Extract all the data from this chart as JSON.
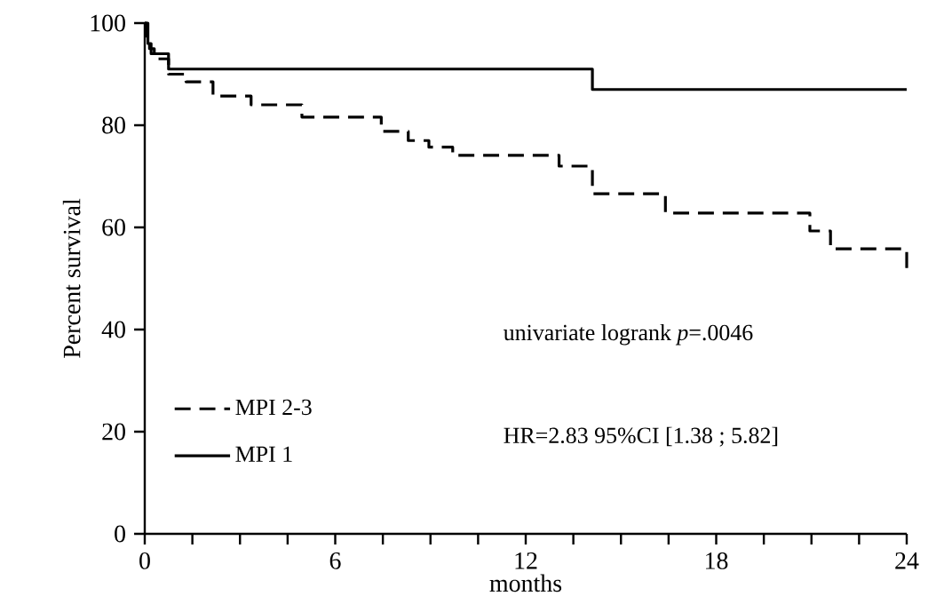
{
  "chart_data": {
    "type": "step",
    "xlabel": "months",
    "ylabel": "Percent survival",
    "xlim": [
      0,
      24
    ],
    "ylim": [
      0,
      100
    ],
    "xticks": [
      0,
      {
        "value": 1.5,
        "label": null
      },
      {
        "value": 3,
        "label": null
      },
      {
        "value": 4.5,
        "label": null
      },
      6,
      {
        "value": 7.5,
        "label": null
      },
      {
        "value": 9,
        "label": null
      },
      {
        "value": 10.5,
        "label": null
      },
      12,
      {
        "value": 13.5,
        "label": null
      },
      {
        "value": 15,
        "label": null
      },
      {
        "value": 16.5,
        "label": null
      },
      18,
      {
        "value": 19.5,
        "label": null
      },
      {
        "value": 21,
        "label": null
      },
      {
        "value": 22.5,
        "label": null
      },
      24
    ],
    "yticks": [
      0,
      20,
      40,
      60,
      80,
      100
    ],
    "grid": false,
    "legend": "bottom left",
    "series": [
      {
        "name": "MPI 2-3",
        "color": "#000000",
        "line_style": "dashed",
        "x": [
          0,
          0.05,
          0.15,
          0.3,
          0.75,
          1.3,
          2.15,
          3.35,
          4.95,
          7.45,
          8.3,
          8.95,
          9.7,
          13.05,
          14.1,
          16.4,
          20.95,
          21.6,
          24
        ],
        "values": [
          100,
          97,
          95,
          93,
          90,
          88.5,
          85.7,
          84,
          81.6,
          78.8,
          77,
          75.7,
          74.1,
          72,
          66.6,
          62.8,
          59.3,
          55.8,
          51.8
        ]
      },
      {
        "name": "MPI 1",
        "color": "#000000",
        "line_style": "solid",
        "x": [
          0,
          0.1,
          0.2,
          0.75,
          14.1,
          24
        ],
        "values": [
          100,
          96,
          94,
          91,
          87,
          87
        ]
      }
    ],
    "annotations": [
      "univariate logrank *p*=.0046",
      "HR=2.83  95%CI [1.38 ; 5.82]"
    ]
  }
}
